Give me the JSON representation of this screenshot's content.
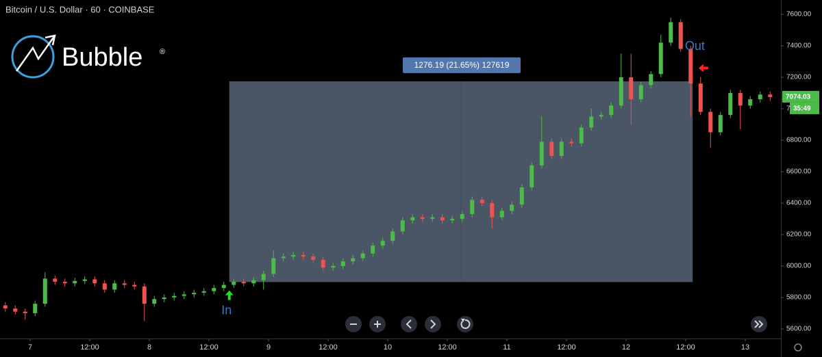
{
  "header": {
    "symbol": "Bitcoin / U.S. Dollar · 60 · COINBASE",
    "logo": "Bubble",
    "registered": "®"
  },
  "chart_data": {
    "type": "candlestick",
    "up_color": "#4cbb4a",
    "down_color": "#ef5350",
    "x": [
      -5,
      -3,
      -1,
      1,
      3,
      5,
      7,
      9,
      11,
      13,
      15,
      17,
      19,
      21,
      23,
      25,
      27,
      29,
      31,
      33,
      35,
      37,
      39,
      41,
      43,
      45,
      47,
      49,
      51,
      53,
      55,
      57,
      59,
      61,
      63,
      65,
      67,
      69,
      71,
      73,
      75,
      77,
      79,
      81,
      83,
      85,
      87,
      89,
      91,
      93,
      95,
      97,
      99,
      101,
      103,
      105,
      107,
      109,
      111,
      113,
      115,
      117,
      119,
      121,
      123,
      125,
      127,
      129,
      131,
      133,
      135,
      137,
      139,
      141,
      143,
      145,
      147,
      149
    ],
    "open": [
      5750,
      5730,
      5710,
      5700,
      5760,
      5920,
      5900,
      5890,
      5905,
      5915,
      5890,
      5850,
      5890,
      5880,
      5870,
      5760,
      5790,
      5800,
      5810,
      5820,
      5830,
      5840,
      5860,
      5880,
      5900,
      5890,
      5910,
      5950,
      6050,
      6060,
      6070,
      6060,
      6040,
      5990,
      6000,
      6030,
      6050,
      6080,
      6130,
      6160,
      6220,
      6290,
      6310,
      6300,
      6310,
      6290,
      6300,
      6330,
      6420,
      6400,
      6310,
      6350,
      6390,
      6500,
      6640,
      6790,
      6700,
      6790,
      6780,
      6880,
      6950,
      6960,
      7020,
      7200,
      7060,
      7150,
      7220,
      7420,
      7550,
      7380,
      7160,
      6980,
      6850,
      6960,
      7100,
      7020,
      7060,
      7090
    ],
    "high": [
      5770,
      5750,
      5730,
      5780,
      5960,
      5940,
      5920,
      5925,
      5935,
      5935,
      5910,
      5910,
      5910,
      5900,
      5890,
      5810,
      5820,
      5830,
      5840,
      5850,
      5860,
      5880,
      5900,
      5920,
      5920,
      5930,
      5970,
      6100,
      6080,
      6090,
      6090,
      6080,
      6060,
      6020,
      6050,
      6070,
      6100,
      6150,
      6180,
      6240,
      6310,
      6330,
      6330,
      6330,
      6330,
      6320,
      6350,
      6440,
      6440,
      6420,
      6370,
      6410,
      6520,
      6660,
      6950,
      6810,
      6810,
      6810,
      6900,
      7000,
      6980,
      7040,
      7350,
      7350,
      7170,
      7240,
      7470,
      7580,
      7570,
      7400,
      7200,
      7000,
      6980,
      7120,
      7120,
      7080,
      7110,
      7110
    ],
    "low": [
      5710,
      5690,
      5660,
      5680,
      5740,
      5880,
      5870,
      5870,
      5885,
      5870,
      5830,
      5830,
      5860,
      5850,
      5650,
      5740,
      5770,
      5780,
      5790,
      5800,
      5810,
      5820,
      5840,
      5860,
      5870,
      5870,
      5850,
      5930,
      6030,
      6040,
      6040,
      6020,
      5970,
      5970,
      5980,
      6010,
      6030,
      6060,
      6110,
      6140,
      6200,
      6270,
      6280,
      6280,
      6270,
      6270,
      6280,
      6310,
      6380,
      6240,
      6290,
      6330,
      6370,
      6480,
      6620,
      6680,
      6680,
      6760,
      6760,
      6860,
      6930,
      6940,
      7000,
      6900,
      7040,
      7130,
      7200,
      7400,
      7360,
      6950,
      6960,
      6750,
      6830,
      6940,
      6870,
      7000,
      7040,
      7050
    ],
    "close": [
      5730,
      5710,
      5700,
      5760,
      5920,
      5900,
      5890,
      5905,
      5915,
      5890,
      5850,
      5890,
      5880,
      5870,
      5760,
      5790,
      5800,
      5810,
      5820,
      5830,
      5840,
      5860,
      5880,
      5900,
      5890,
      5910,
      5950,
      6050,
      6060,
      6070,
      6060,
      6040,
      5990,
      6000,
      6030,
      6050,
      6080,
      6130,
      6160,
      6220,
      6290,
      6310,
      6300,
      6310,
      6290,
      6300,
      6330,
      6420,
      6400,
      6310,
      6350,
      6390,
      6500,
      6640,
      6790,
      6700,
      6790,
      6780,
      6880,
      6950,
      6960,
      7020,
      7200,
      7060,
      7150,
      7220,
      7420,
      7550,
      7380,
      7160,
      6980,
      6850,
      6960,
      7100,
      7020,
      7060,
      7090,
      7074.03
    ],
    "xlim": [
      -6.07,
      151.17
    ],
    "xticks": [
      {
        "value": 0,
        "label": "7"
      },
      {
        "value": 12,
        "label": "12:00"
      },
      {
        "value": 24,
        "label": "8"
      },
      {
        "value": 36,
        "label": "12:00"
      },
      {
        "value": 48,
        "label": "9"
      },
      {
        "value": 60,
        "label": "12:00"
      },
      {
        "value": 72,
        "label": "10"
      },
      {
        "value": 84,
        "label": "12:00"
      },
      {
        "value": 96,
        "label": "11"
      },
      {
        "value": 108,
        "label": "12:00"
      },
      {
        "value": 120,
        "label": "12"
      },
      {
        "value": 132,
        "label": "12:00"
      },
      {
        "value": 144,
        "label": "13"
      }
    ],
    "ylim": [
      5539,
      7691
    ],
    "yticks": [
      {
        "value": 5600,
        "label": "5600.00"
      },
      {
        "value": 5800,
        "label": "5800.00"
      },
      {
        "value": 6000,
        "label": "6000.00"
      },
      {
        "value": 6200,
        "label": "6200.00"
      },
      {
        "value": 6400,
        "label": "6400.00"
      },
      {
        "value": 6600,
        "label": "6600.00"
      },
      {
        "value": 6800,
        "label": "6800.00"
      },
      {
        "value": 7000,
        "label": "7000.00"
      },
      {
        "value": 7200,
        "label": "7200.00"
      },
      {
        "value": 7400,
        "label": "7400.00"
      },
      {
        "value": 7600,
        "label": "7600.00"
      }
    ],
    "last_price": 7074.03,
    "countdown": "35:49",
    "measure": {
      "x": [
        40.1,
        133.4
      ],
      "price": [
        5897.84,
        7174.03
      ],
      "label": "1276.19 (21.65%) 127619"
    },
    "entry": {
      "label": "In",
      "x": 40.1,
      "price": 5880
    },
    "exit": {
      "label": "Out",
      "x": 134.6,
      "price": 7150
    }
  }
}
